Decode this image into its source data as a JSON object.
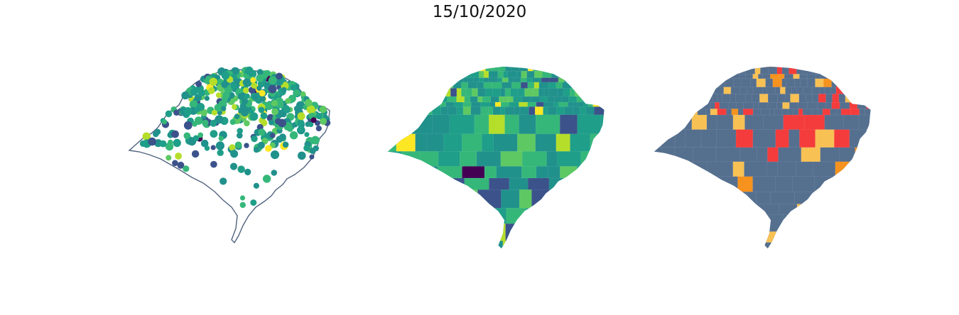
{
  "title": "15/10/2020",
  "colors": {
    "outline": "#50637e",
    "viridis": [
      "#440154",
      "#3b528b",
      "#21918c",
      "#1f9e89",
      "#35b779",
      "#5ec962",
      "#b5de2b",
      "#fde725"
    ],
    "risk": {
      "base": "#556f8f",
      "yellow": "#f8c154",
      "orange": "#f6921e",
      "red": "#f53c3c"
    }
  },
  "panels": [
    {
      "name": "points-map",
      "type": "scatter-map"
    },
    {
      "name": "choropleth-viridis",
      "type": "choropleth"
    },
    {
      "name": "choropleth-risk",
      "type": "choropleth"
    }
  ]
}
